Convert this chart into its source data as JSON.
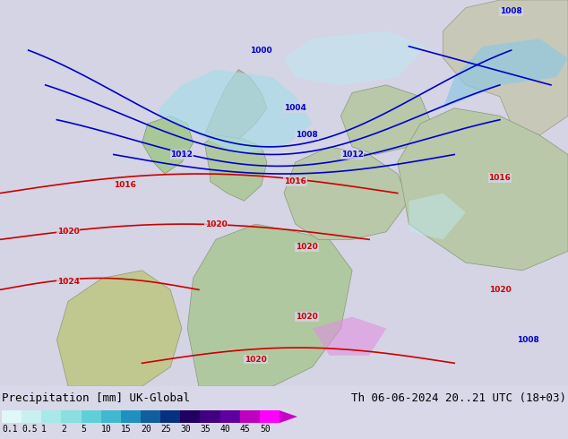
{
  "title_left": "Precipitation [mm] UK-Global",
  "title_right": "Th 06-06-2024 20..21 UTC (18+03)",
  "colorbar_labels": [
    "0.1",
    "0.5",
    "1",
    "2",
    "5",
    "10",
    "15",
    "20",
    "25",
    "30",
    "35",
    "40",
    "45",
    "50"
  ],
  "colorbar_colors": [
    "#e0f7f7",
    "#c8f0f0",
    "#a8e8e8",
    "#88e0e0",
    "#60d0d8",
    "#40b8d0",
    "#2090c0",
    "#1060a0",
    "#083080",
    "#200060",
    "#400080",
    "#6000a0",
    "#c000c0",
    "#ff00ff"
  ],
  "bg_color": "#d8d8e8",
  "map_bg": "#d8d8e8",
  "land_color_north": "#c8c8d8",
  "land_color_south": "#c8d8c0",
  "sea_color": "#d8d8e8",
  "isobar_blue_color": "#0000cc",
  "isobar_red_color": "#cc0000",
  "precip_light": "#b0e8f0",
  "precip_medium": "#80d0e8",
  "font_size_title": 9,
  "font_size_labels": 8,
  "font_size_ticks": 7,
  "fig_width": 6.34,
  "fig_height": 4.9,
  "dpi": 100
}
